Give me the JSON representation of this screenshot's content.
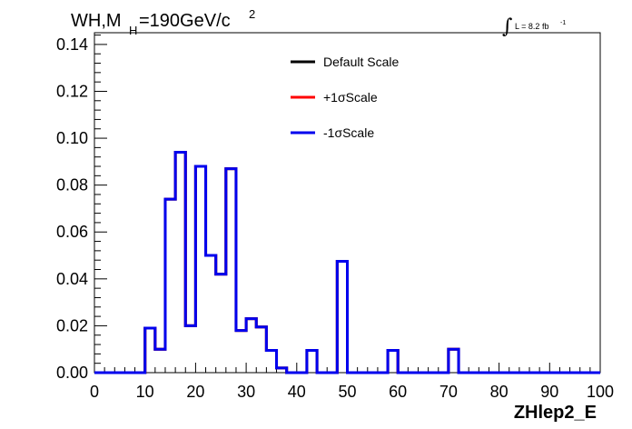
{
  "chart_data": {
    "type": "step",
    "title": "WH,M",
    "title_subscript": "H",
    "title_rest": "=190GeV/c",
    "title_superscript": "2",
    "luminosity_label": "L = 8.2 fb",
    "luminosity_superscript": "-1",
    "luminosity_integral": "∫",
    "xlabel": "ZHlep2_E",
    "ylabel": "",
    "xlim": [
      0,
      100
    ],
    "ylim": [
      0,
      0.145
    ],
    "xticks": [
      0,
      10,
      20,
      30,
      40,
      50,
      60,
      70,
      80,
      90,
      100
    ],
    "xtick_labels": [
      "0",
      "10",
      "20",
      "30",
      "40",
      "50",
      "60",
      "70",
      "80",
      "90",
      "100"
    ],
    "yticks": [
      0,
      0.02,
      0.04,
      0.06,
      0.08,
      0.1,
      0.12,
      0.14
    ],
    "ytick_labels": [
      "0.00",
      "0.02",
      "0.04",
      "0.06",
      "0.08",
      "0.10",
      "0.12",
      "0.14"
    ],
    "bin_width": 2,
    "bin_edges_start": 0,
    "legend_position": "top-center",
    "grid": false,
    "series": [
      {
        "name": "Default Scale",
        "color": "#000000",
        "values": [
          0,
          0,
          0,
          0,
          0,
          0.019,
          0.01,
          0.074,
          0.094,
          0.02,
          0.088,
          0.05,
          0.042,
          0.087,
          0.018,
          0.023,
          0.0195,
          0.0095,
          0.002,
          0,
          0,
          0.0095,
          0,
          0,
          0.0475,
          0,
          0,
          0,
          0,
          0.0095,
          0,
          0,
          0,
          0,
          0,
          0.01,
          0,
          0,
          0,
          0,
          0,
          0,
          0,
          0,
          0,
          0,
          0,
          0,
          0,
          0
        ]
      },
      {
        "name": "+1σScale",
        "color": "#ff0000",
        "values": [
          0,
          0,
          0,
          0,
          0,
          0.019,
          0.01,
          0.074,
          0.094,
          0.02,
          0.088,
          0.05,
          0.042,
          0.087,
          0.018,
          0.023,
          0.0195,
          0.0095,
          0.002,
          0,
          0,
          0.0095,
          0,
          0,
          0.0475,
          0,
          0,
          0,
          0,
          0.0095,
          0,
          0,
          0,
          0,
          0,
          0.01,
          0,
          0,
          0,
          0,
          0,
          0,
          0,
          0,
          0,
          0,
          0,
          0,
          0,
          0
        ]
      },
      {
        "name": "-1σScale",
        "color": "#0000ee",
        "values": [
          0,
          0,
          0,
          0,
          0,
          0.019,
          0.01,
          0.074,
          0.094,
          0.02,
          0.088,
          0.05,
          0.042,
          0.087,
          0.018,
          0.023,
          0.0195,
          0.0095,
          0.002,
          0,
          0,
          0.0095,
          0,
          0,
          0.0475,
          0,
          0,
          0,
          0,
          0.0095,
          0,
          0,
          0,
          0,
          0,
          0.01,
          0,
          0,
          0,
          0,
          0,
          0,
          0,
          0,
          0,
          0,
          0,
          0,
          0,
          0
        ]
      }
    ]
  }
}
